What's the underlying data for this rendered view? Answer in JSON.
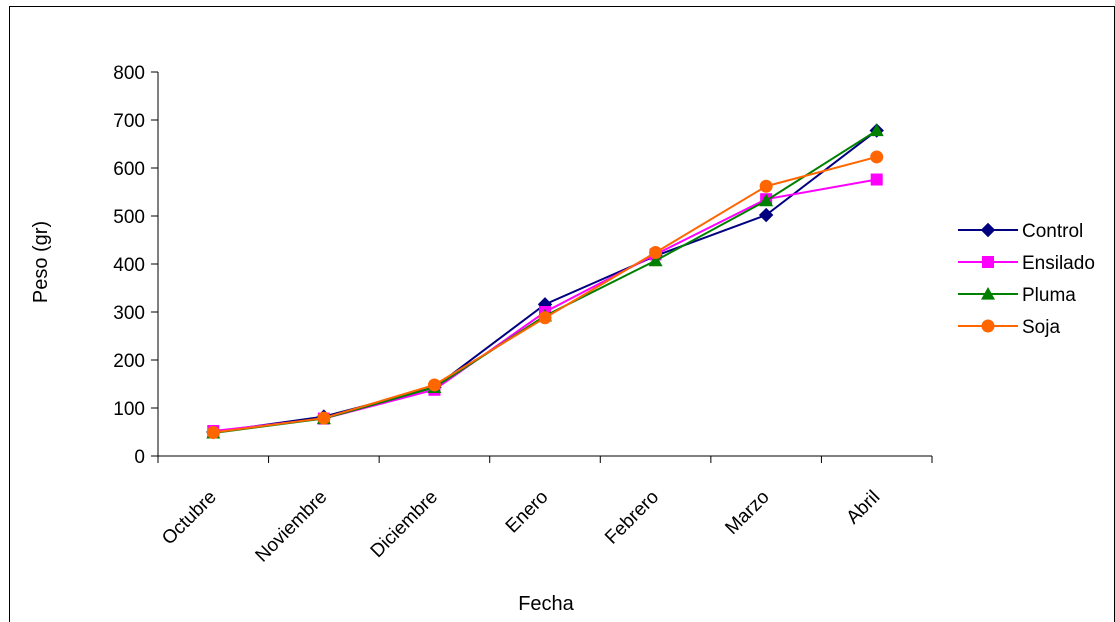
{
  "chart_data": {
    "type": "line",
    "xlabel": "Fecha",
    "ylabel": "Peso (gr)",
    "categories": [
      "Octubre",
      "Noviembre",
      "Diciembre",
      "Enero",
      "Febrero",
      "Marzo",
      "Abril"
    ],
    "ylim": [
      0,
      800
    ],
    "yticks": [
      "0",
      "100",
      "200",
      "300",
      "400",
      "500",
      "600",
      "700",
      "800"
    ],
    "grid": false,
    "legend_position": "right",
    "series": [
      {
        "name": "Control",
        "color": "#000080",
        "marker": "diamond",
        "values": [
          50,
          82,
          143,
          316,
          417,
          502,
          678
        ]
      },
      {
        "name": "Ensilado",
        "color": "#FF00FF",
        "marker": "square",
        "values": [
          52,
          78,
          138,
          300,
          420,
          535,
          576
        ]
      },
      {
        "name": "Pluma",
        "color": "#008000",
        "marker": "triangle",
        "values": [
          48,
          78,
          143,
          292,
          407,
          532,
          678
        ]
      },
      {
        "name": "Soja",
        "color": "#FF6600",
        "marker": "circle",
        "values": [
          49,
          79,
          148,
          288,
          424,
          562,
          623
        ]
      }
    ]
  }
}
